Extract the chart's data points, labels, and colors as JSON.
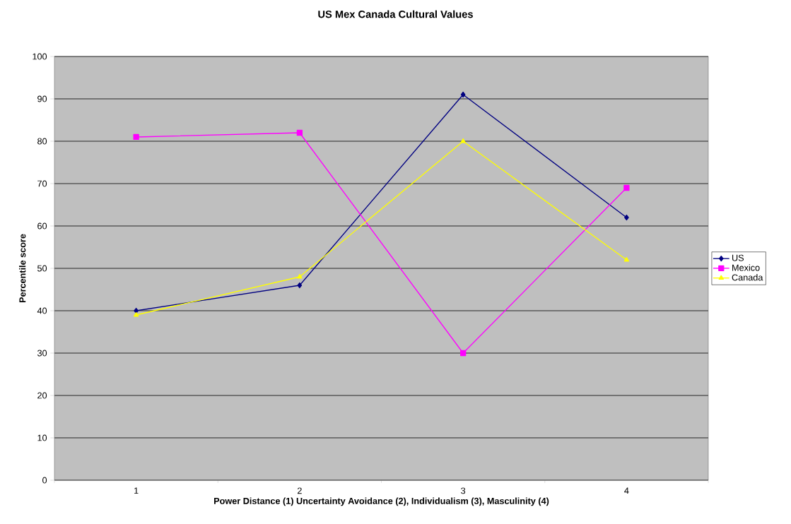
{
  "chart_data": {
    "type": "line",
    "title": "US Mex Canada Cultural Values",
    "xlabel": "Power Distance (1) Uncertainty Avoidance (2), Individualism (3), Masculinity (4)",
    "ylabel": "Percentile score",
    "categories": [
      "1",
      "2",
      "3",
      "4"
    ],
    "ylim": [
      0,
      100
    ],
    "yticks": [
      0,
      10,
      20,
      30,
      40,
      50,
      60,
      70,
      80,
      90,
      100
    ],
    "grid": "y",
    "legend": "right",
    "line_style": "solid",
    "series": [
      {
        "name": "US",
        "color": "#000080",
        "marker": "diamond",
        "values": [
          40,
          46,
          91,
          62
        ]
      },
      {
        "name": "Mexico",
        "color": "#ff00ff",
        "marker": "square",
        "values": [
          81,
          82,
          30,
          69
        ]
      },
      {
        "name": "Canada",
        "color": "#ffff00",
        "marker": "triangle",
        "values": [
          39,
          48,
          80,
          52
        ]
      }
    ]
  }
}
